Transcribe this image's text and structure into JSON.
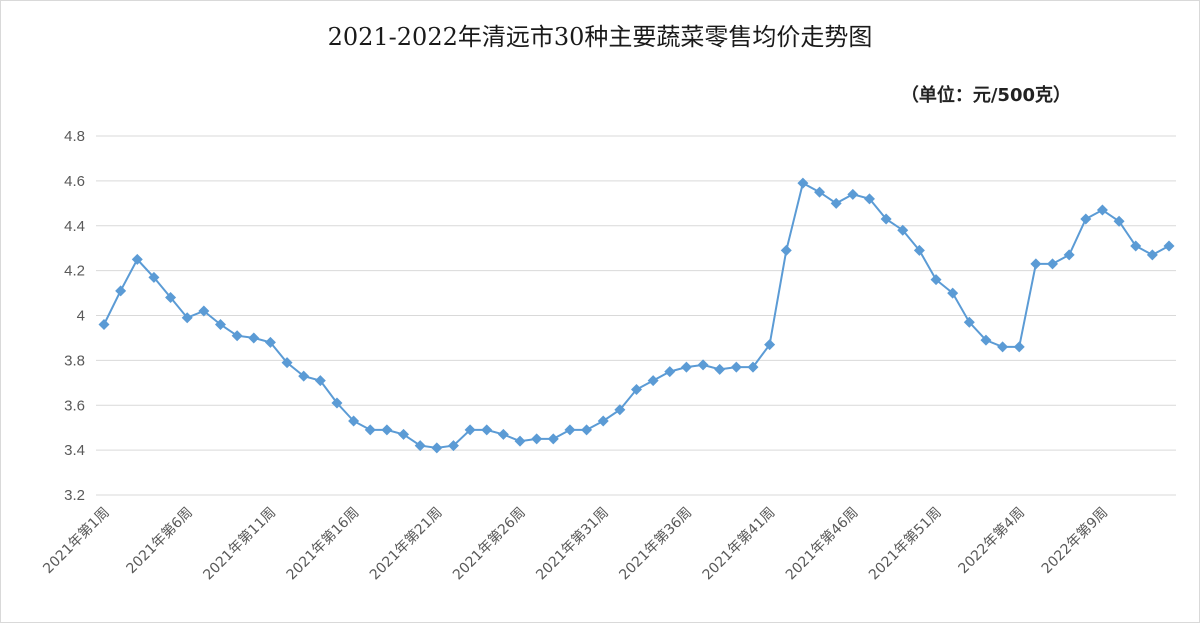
{
  "chart_data": {
    "type": "line",
    "title": "2021-2022年清远市30种主要蔬菜零售均价走势图",
    "unit": "（单位：元/500克）",
    "xlabel": "",
    "ylabel": "",
    "ylim": [
      3.2,
      4.8
    ],
    "yticks": [
      3.2,
      3.4,
      3.6,
      3.8,
      4,
      4.2,
      4.4,
      4.6,
      4.8
    ],
    "grid": true,
    "legend": "none",
    "line_color": "#5b9bd5",
    "x_labels_shown": [
      {
        "index": 0,
        "label": "2021年第1周"
      },
      {
        "index": 5,
        "label": "2021年第6周"
      },
      {
        "index": 10,
        "label": "2021年第11周"
      },
      {
        "index": 15,
        "label": "2021年第16周"
      },
      {
        "index": 20,
        "label": "2021年第21周"
      },
      {
        "index": 25,
        "label": "2021年第26周"
      },
      {
        "index": 30,
        "label": "2021年第31周"
      },
      {
        "index": 35,
        "label": "2021年第36周"
      },
      {
        "index": 40,
        "label": "2021年第41周"
      },
      {
        "index": 45,
        "label": "2021年第46周"
      },
      {
        "index": 50,
        "label": "2021年第51周"
      },
      {
        "index": 55,
        "label": "2022年第4周"
      },
      {
        "index": 60,
        "label": "2022年第9周"
      }
    ],
    "values": [
      3.96,
      4.11,
      4.25,
      4.17,
      4.08,
      3.99,
      4.02,
      3.96,
      3.91,
      3.9,
      3.88,
      3.79,
      3.73,
      3.71,
      3.61,
      3.53,
      3.49,
      3.49,
      3.47,
      3.42,
      3.41,
      3.42,
      3.49,
      3.49,
      3.47,
      3.44,
      3.45,
      3.45,
      3.49,
      3.49,
      3.53,
      3.58,
      3.67,
      3.71,
      3.75,
      3.77,
      3.78,
      3.76,
      3.77,
      3.77,
      3.87,
      4.29,
      4.59,
      4.55,
      4.5,
      4.54,
      4.52,
      4.43,
      4.38,
      4.29,
      4.16,
      4.1,
      3.97,
      3.89,
      3.86,
      3.86,
      4.23,
      4.23,
      4.27,
      4.43,
      4.47,
      4.42,
      4.31,
      4.27,
      4.31
    ]
  }
}
